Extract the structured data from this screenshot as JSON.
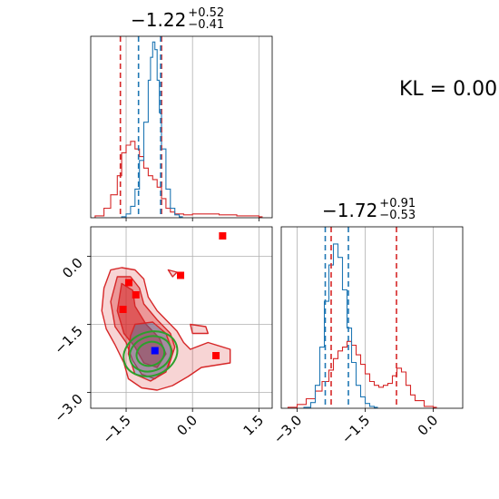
{
  "chart_data": {
    "type": "corner-plot",
    "annotation": "KL = 0.00",
    "param_ticks": {
      "p1": [
        "−1.5",
        "0.0",
        "1.5"
      ],
      "p2_y": [
        "0.0",
        "−1.5",
        "−3.0"
      ],
      "p2_x": [
        "−3.0",
        "−1.5",
        "0.0"
      ]
    },
    "p1_title": {
      "main": "−1.22",
      "plus": "+0.52",
      "minus": "−0.41"
    },
    "p2_title": {
      "main": "−1.72",
      "plus": "+0.91",
      "minus": "−0.53"
    },
    "p1_range": [
      -2.3,
      1.8
    ],
    "p2_range": [
      -3.35,
      0.65
    ],
    "colors": {
      "red": "#d62728",
      "blue": "#1f77b4",
      "green": "#2ca02c",
      "grid": "#b0b0b0"
    },
    "series": [
      {
        "color": "red",
        "p1_quantile_lines": [
          -1.63,
          -0.7
        ],
        "p2_quantile_lines": [
          -2.25,
          -0.81
        ],
        "p1_hist": {
          "x": [
            -2.2,
            -2.0,
            -1.85,
            -1.7,
            -1.6,
            -1.5,
            -1.4,
            -1.3,
            -1.2,
            -1.1,
            -1.0,
            -0.9,
            -0.8,
            -0.7,
            -0.6,
            -0.5,
            -0.4,
            -0.2,
            0.0,
            0.3,
            0.6,
            1.0,
            1.5
          ],
          "y": [
            0.01,
            0.05,
            0.12,
            0.22,
            0.34,
            0.38,
            0.4,
            0.36,
            0.32,
            0.26,
            0.22,
            0.2,
            0.16,
            0.1,
            0.05,
            0.03,
            0.02,
            0.015,
            0.02,
            0.02,
            0.015,
            0.01,
            0.005
          ]
        },
        "p2_hist": {
          "x": [
            -3.2,
            -3.0,
            -2.8,
            -2.6,
            -2.45,
            -2.3,
            -2.2,
            -2.1,
            -2.0,
            -1.9,
            -1.8,
            -1.7,
            -1.6,
            -1.5,
            -1.4,
            -1.3,
            -1.2,
            -1.1,
            -1.0,
            -0.9,
            -0.8,
            -0.7,
            -0.6,
            -0.5,
            -0.4,
            -0.2,
            0.0
          ],
          "y": [
            0.005,
            0.02,
            0.05,
            0.09,
            0.14,
            0.2,
            0.26,
            0.3,
            0.32,
            0.35,
            0.33,
            0.28,
            0.23,
            0.18,
            0.14,
            0.12,
            0.11,
            0.12,
            0.13,
            0.17,
            0.21,
            0.19,
            0.12,
            0.07,
            0.04,
            0.01,
            0.005
          ]
        },
        "markers": [
          {
            "p1": 0.68,
            "p2": 0.45
          },
          {
            "p1": -0.27,
            "p2": -0.42
          },
          {
            "p1": -1.44,
            "p2": -0.58
          },
          {
            "p1": -1.28,
            "p2": -0.85
          },
          {
            "p1": -1.57,
            "p2": -1.17
          },
          {
            "p1": 0.53,
            "p2": -2.19
          }
        ]
      },
      {
        "color": "blue",
        "p1_quantile_lines": [
          -1.22,
          -0.72
        ],
        "p2_quantile_lines": [
          -2.38,
          -1.87
        ],
        "p1_hist": {
          "x": [
            -1.6,
            -1.5,
            -1.4,
            -1.3,
            -1.2,
            -1.1,
            -1.0,
            -0.95,
            -0.9,
            -0.85,
            -0.8,
            -0.75,
            -0.7,
            -0.6,
            -0.5,
            -0.4,
            -0.3
          ],
          "y": [
            0.005,
            0.02,
            0.06,
            0.15,
            0.3,
            0.5,
            0.72,
            0.84,
            0.92,
            0.88,
            0.72,
            0.55,
            0.36,
            0.15,
            0.05,
            0.015,
            0.005
          ]
        },
        "p2_hist": {
          "x": [
            -2.85,
            -2.7,
            -2.6,
            -2.5,
            -2.4,
            -2.3,
            -2.2,
            -2.1,
            -2.0,
            -1.9,
            -1.8,
            -1.7,
            -1.6,
            -1.5,
            -1.4,
            -1.3
          ],
          "y": [
            0.005,
            0.03,
            0.12,
            0.32,
            0.56,
            0.75,
            0.86,
            0.79,
            0.62,
            0.42,
            0.24,
            0.12,
            0.06,
            0.025,
            0.01,
            0.005
          ]
        },
        "markers": [
          {
            "p1": -0.85,
            "p2": -2.08
          }
        ]
      },
      {
        "color": "green",
        "contours": [
          {
            "cx": -0.95,
            "cy": -2.15,
            "rx": 0.62,
            "ry": 0.48,
            "rot": -0.35
          },
          {
            "cx": -0.95,
            "cy": -2.15,
            "rx": 0.48,
            "ry": 0.38,
            "rot": -0.35
          },
          {
            "cx": -0.95,
            "cy": -2.15,
            "rx": 0.32,
            "ry": 0.26,
            "rot": -0.35
          }
        ]
      }
    ]
  }
}
